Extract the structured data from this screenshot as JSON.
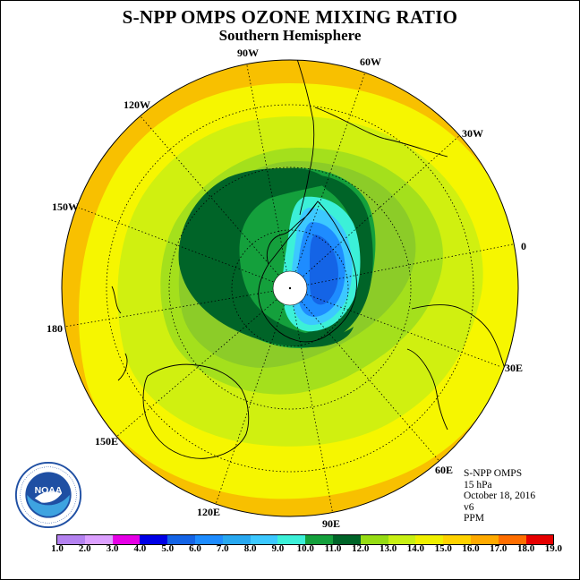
{
  "title": "S-NPP OMPS OZONE MIXING RATIO",
  "subtitle": "Southern Hemisphere",
  "longitude_labels": [
    "90W",
    "60W",
    "30W",
    "0",
    "30E",
    "60E",
    "90E",
    "120E",
    "150E",
    "180",
    "150W",
    "120W"
  ],
  "info": {
    "instrument": "S-NPP OMPS",
    "level": "15 hPa",
    "date": "October 18, 2016",
    "version": "v6",
    "units": "PPM"
  },
  "logo": {
    "text": "NOAA",
    "icon": "noaa-logo"
  },
  "colorbar": {
    "labels": [
      "1.0",
      "2.0",
      "3.0",
      "4.0",
      "5.0",
      "6.0",
      "7.0",
      "8.0",
      "9.0",
      "10.0",
      "11.0",
      "12.0",
      "13.0",
      "14.0",
      "15.0",
      "16.0",
      "17.0",
      "18.0",
      "19.0"
    ],
    "colors": [
      "#b482f0",
      "#dca0ff",
      "#e600e6",
      "#0000e6",
      "#1464e6",
      "#1e8cff",
      "#28a8f0",
      "#3cc8ff",
      "#3cf0d8",
      "#14a03c",
      "#006428",
      "#96dc14",
      "#c8f014",
      "#f0f000",
      "#ffd200",
      "#ffaa00",
      "#ff6e00",
      "#e60000",
      "#8c4628"
    ]
  },
  "palette": {
    "orange": "#f8c000",
    "yellow": "#f6f600",
    "lime": "#d0f010",
    "lightgreen": "#a4e01c",
    "midgreen": "#8ccc28",
    "green": "#14a03c",
    "darkgreen": "#006428",
    "cyan": "#3cf0d8",
    "lightblue": "#3cc8ff",
    "blue": "#1e8cff",
    "deepblue": "#1464e6"
  }
}
